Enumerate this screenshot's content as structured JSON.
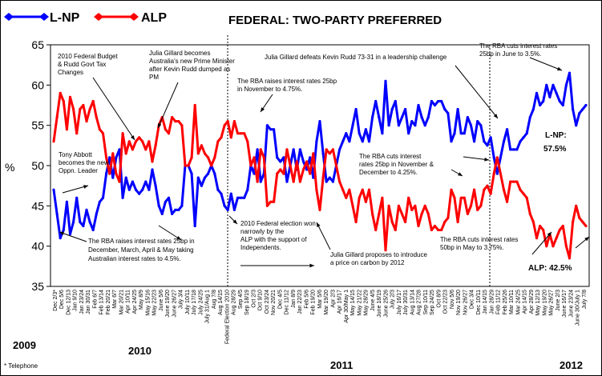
{
  "chart_data": {
    "type": "line",
    "title": "FEDERAL: TWO-PARTY PREFERRED",
    "ylabel": "%",
    "ylim": [
      35,
      65
    ],
    "yticks": [
      35,
      40,
      45,
      50,
      55,
      60,
      65
    ],
    "footnote": "* Telephone",
    "years": [
      "2009",
      "2010",
      "2011",
      "2012"
    ],
    "colors": {
      "lnp": "#0000ff",
      "alp": "#ff0000"
    },
    "series": [
      {
        "name": "L-NP",
        "end_label": "L-NP: 57.5%",
        "values": [
          47,
          44,
          41,
          42,
          45.5,
          41.5,
          43,
          46,
          43,
          42.5,
          44.5,
          43,
          42,
          44,
          45.5,
          46,
          49,
          51,
          48.5,
          51,
          52,
          46,
          48.5,
          47,
          48,
          47,
          46.5,
          47,
          48,
          47,
          49.5,
          47.5,
          45,
          44,
          45.5,
          46,
          44,
          44.5,
          44.5,
          45,
          50,
          50,
          49,
          42.5,
          48.5,
          47.5,
          48.5,
          49,
          50,
          49,
          47,
          46.5,
          45,
          44.5,
          46.5,
          44.5,
          46,
          46,
          46,
          47,
          50,
          49,
          52,
          48,
          49,
          55,
          54.5,
          54.5,
          51,
          50.5,
          51,
          48,
          50,
          52,
          49.5,
          52,
          50.5,
          49.5,
          51,
          48.5,
          53,
          55.5,
          51.5,
          48,
          48.5,
          48,
          50,
          52,
          53,
          54,
          53,
          55,
          57,
          54,
          53,
          54.5,
          53,
          56,
          58,
          56,
          54,
          60.5,
          55,
          57,
          58,
          55,
          56,
          57,
          54,
          55.5,
          55,
          57.5,
          56,
          55,
          56,
          58,
          57.5,
          58,
          58,
          57,
          56.5,
          53,
          54,
          57,
          54,
          54,
          56,
          55,
          53,
          55.5,
          55,
          53,
          52.5,
          53.5,
          51,
          49,
          51,
          53,
          54.5,
          52,
          52,
          52,
          53,
          53.5,
          54,
          56,
          57,
          59,
          57.5,
          58,
          60,
          58.5,
          60,
          59,
          58,
          57.5,
          60,
          61.5,
          57,
          55,
          56.5,
          57,
          57.5
        ]
      },
      {
        "name": "ALP",
        "end_label": "ALP: 42.5%",
        "values": [
          53,
          56,
          59,
          58,
          54.5,
          58.5,
          57,
          54,
          57,
          57.5,
          55.5,
          57,
          58,
          56,
          54.5,
          54,
          51,
          49,
          51.5,
          49,
          48,
          54,
          51.5,
          53,
          52,
          53,
          53.5,
          53,
          52,
          53,
          50.5,
          52.5,
          55,
          56,
          54.5,
          54,
          56,
          55.5,
          55.5,
          55,
          50,
          50,
          51,
          57.5,
          51.5,
          52.5,
          51.5,
          51,
          50,
          51,
          53,
          53.5,
          55,
          55.5,
          53.5,
          55.5,
          54,
          54,
          54,
          53,
          50,
          51,
          48,
          52,
          51,
          45,
          45.5,
          45.5,
          49,
          49.5,
          49,
          52,
          50,
          48,
          50.5,
          48,
          49.5,
          50.5,
          49,
          51.5,
          47,
          44.5,
          48.5,
          52,
          51.5,
          52,
          50,
          48,
          47,
          46,
          47,
          45,
          43,
          46,
          47,
          45.5,
          47,
          44,
          42,
          44,
          46,
          39.5,
          45,
          43,
          42,
          45,
          44,
          43,
          46,
          44.5,
          45,
          42.5,
          44,
          45,
          44,
          42,
          42.5,
          42,
          42,
          43,
          43.5,
          47,
          46,
          43,
          46,
          46,
          44,
          45,
          47,
          44.5,
          45,
          47,
          47.5,
          46.5,
          49,
          51,
          49,
          47,
          45.5,
          48,
          48,
          48,
          47,
          46.5,
          46,
          44,
          43,
          41,
          42.5,
          42,
          40,
          41.5,
          40,
          41,
          42,
          42.5,
          40,
          38.5,
          43,
          45,
          43.5,
          43,
          42.5
        ]
      }
    ],
    "x_labels": [
      "Dec 2/3*",
      "Dec 5/6",
      "Dec 12/13",
      "Jan 9/10",
      "Jan 23/24",
      "Jan 30/31",
      "Feb 6/7",
      "Feb 13/14",
      "Feb 20/21",
      "Mar 6/7",
      "Mar 20/21",
      "Apr 10/11",
      "Apr 24/25",
      "May 8/9",
      "May 15/16",
      "May 22/23",
      "June 5/6",
      "June 19/20",
      "June 26/27",
      "July 3/4",
      "July 10/11",
      "July 17/18",
      "July 24/25",
      "July 31/Aug 1",
      "Aug 7/8",
      "Aug 14/15",
      "Federal Election 2010",
      "Aug 28/29",
      "Sep 4/5",
      "Sep 18/19",
      "Oct 2/3",
      "Oct 9/10",
      "Oct 23/24",
      "Nov 20/21",
      "Dec 4/5",
      "Dec 11/12",
      "Jan 8/9",
      "Jan 22/23",
      "Feb 5/6",
      "Feb 19/20",
      "Mar 5/6",
      "Mar 19/20",
      "Apr 2/3",
      "Apr 16/17",
      "Apr 30/May 1",
      "May 14/15",
      "May 21/22",
      "May 28/29",
      "June 4/5",
      "June 18/19",
      "June 25/26",
      "July 2/3",
      "July 16/17",
      "July 30/31",
      "Aug 13/14",
      "Aug 27/28",
      "Sep 10/11",
      "Sep 24/25",
      "Oct 8/9",
      "Oct 22/23",
      "Nov 5/6",
      "Nov 19/20",
      "Nov 26/27",
      "Dec 3/4",
      "Dec 10/11",
      "Jan 14/15",
      "Jan 28/29",
      "Feb 11/12",
      "Feb 25/26",
      "Mar 10/11",
      "Mar 24/25",
      "Apr 14/15",
      "Apr 28/29",
      "May 12/13",
      "May 19/20",
      "May 26/27",
      "June 2/3",
      "June 16/17",
      "June 23/24",
      "June 30/July 1",
      "July 7/8"
    ],
    "annotations": [
      {
        "id": "budget",
        "lines": [
          "2010 Federal Budget",
          "& Rudd Govt Tax",
          "Changes"
        ]
      },
      {
        "id": "gillard-pm",
        "lines": [
          "Julia Gillard becomes",
          "Australia's new Prime Minister",
          "after Kevin Rudd dumped as",
          "PM"
        ]
      },
      {
        "id": "abbott",
        "lines": [
          "Tony Abbott",
          "becomes the new",
          "Oppn. Leader"
        ]
      },
      {
        "id": "rba-raise-4",
        "lines": [
          "The RBA raises interest rates 25bp in",
          "December, March, April & May taking",
          "Australian interest rates to 4.5%."
        ]
      },
      {
        "id": "election",
        "lines": [
          "2010 Federal election won",
          "narrowly by the",
          "ALP with the support of",
          "Independents."
        ]
      },
      {
        "id": "rba-raise-nov",
        "lines": [
          "The RBA raises interest rates 25bp",
          "in November to 4.75%."
        ]
      },
      {
        "id": "carbon",
        "lines": [
          "Julia Gillard proposes to introduce",
          "a price on carbon by 2012"
        ]
      },
      {
        "id": "rba-cut-425",
        "lines": [
          "The RBA cuts interest",
          "rates 25bp in November &",
          "December to 4.25%."
        ]
      },
      {
        "id": "leadership",
        "lines": [
          "Julia Gillard defeats Kevin Rudd 73-31 in a leadership challenge"
        ]
      },
      {
        "id": "rba-cut-35",
        "lines": [
          "The RBA cuts interest rates",
          "25bp in June to 3.5%."
        ]
      },
      {
        "id": "rba-cut-375",
        "lines": [
          "The RBA cuts interest rates",
          "50bp in May to 3.75%."
        ]
      }
    ]
  }
}
